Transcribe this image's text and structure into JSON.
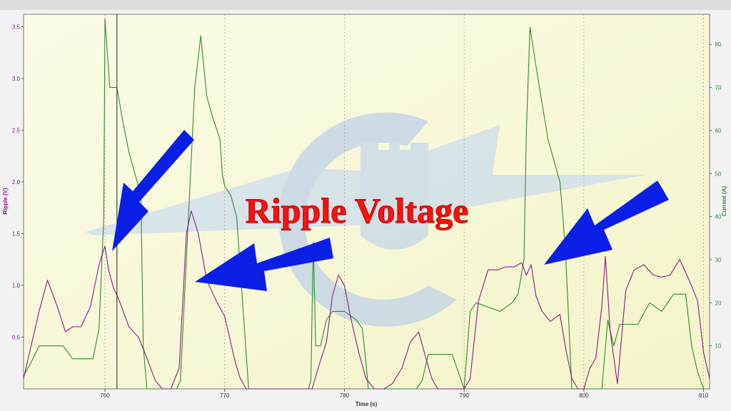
{
  "chart_data": {
    "type": "line",
    "title": "Ripple Voltage",
    "xlabel": "Time (s)",
    "ylabel_left": "Ripple (V)",
    "ylabel_right": "Current (A)",
    "xlim": [
      753.2,
      810.5
    ],
    "ylim_left": [
      0,
      3.62
    ],
    "ylim_right": [
      0,
      87
    ],
    "x_ticks": [
      760,
      770,
      780,
      790,
      800,
      810
    ],
    "y_ticks_left": [
      0.5,
      1.0,
      1.5,
      2.0,
      2.5,
      3.0,
      3.5
    ],
    "y_ticks_right": [
      10,
      20,
      30,
      40,
      50,
      60,
      70,
      80
    ],
    "grid": "vertical dashed",
    "cursor_x": 761.0,
    "series": [
      {
        "name": "Ripple (V)",
        "axis": "left",
        "color": "#8b1a8b",
        "x": [
          753.2,
          753.8,
          754.5,
          755.2,
          756.0,
          756.7,
          757.3,
          758.0,
          758.8,
          759.5,
          760.0,
          760.3,
          760.7,
          761.2,
          762.0,
          762.8,
          763.5,
          764.2,
          764.8,
          765.5,
          766.2,
          766.8,
          767.2,
          767.8,
          768.5,
          769.3,
          770.0,
          770.5,
          770.9,
          771.3,
          771.8,
          772.5,
          773.3,
          774.0,
          774.8,
          775.5,
          776.2,
          776.8,
          777.3,
          777.8,
          778.5,
          779.0,
          779.5,
          780.0,
          780.5,
          781.2,
          781.8,
          782.5,
          783.3,
          784.0,
          784.8,
          785.5,
          786.2,
          786.8,
          787.3,
          787.8,
          788.5,
          789.2,
          790.0,
          790.5,
          791.2,
          792.0,
          792.8,
          793.5,
          794.2,
          794.8,
          795.2,
          795.6,
          796.0,
          796.5,
          797.2,
          798.0,
          798.5,
          799.0,
          799.5,
          800.0,
          800.5,
          801.0,
          801.5,
          801.8,
          802.2,
          802.8,
          803.5,
          804.2,
          805.0,
          805.8,
          806.5,
          807.2,
          808.0,
          808.8,
          809.5,
          810.0,
          810.5
        ],
        "values": [
          0.1,
          0.4,
          0.75,
          1.05,
          0.8,
          0.55,
          0.6,
          0.6,
          0.8,
          1.2,
          1.38,
          1.15,
          0.98,
          0.85,
          0.6,
          0.5,
          0.3,
          0.08,
          0.0,
          0.0,
          0.2,
          1.5,
          1.72,
          1.5,
          1.05,
          0.85,
          0.7,
          0.45,
          0.25,
          0.1,
          0.0,
          0.0,
          0.0,
          0.0,
          0.0,
          0.0,
          0.0,
          0.0,
          0.0,
          0.2,
          0.45,
          0.9,
          1.1,
          1.0,
          0.7,
          0.35,
          0.1,
          0.0,
          0.0,
          0.05,
          0.2,
          0.45,
          0.55,
          0.3,
          0.1,
          0.0,
          0.0,
          0.0,
          0.0,
          0.1,
          0.85,
          1.15,
          1.15,
          1.18,
          1.18,
          1.22,
          1.1,
          1.2,
          0.9,
          0.75,
          0.65,
          0.72,
          0.38,
          0.1,
          0.0,
          0.0,
          0.2,
          0.3,
          0.8,
          1.28,
          0.55,
          0.05,
          0.95,
          1.15,
          1.2,
          1.1,
          1.08,
          1.1,
          1.25,
          1.05,
          0.85,
          0.35,
          0.1
        ]
      },
      {
        "name": "Current (A)",
        "axis": "right",
        "color": "#2e8b2e",
        "x": [
          753.2,
          753.8,
          754.5,
          756.5,
          757.3,
          759.0,
          759.5,
          759.9,
          760.0,
          760.4,
          761.0,
          761.5,
          762.0,
          762.5,
          763.0,
          763.2,
          763.5,
          764.0,
          765.0,
          766.0,
          766.3,
          766.8,
          767.5,
          768.0,
          768.5,
          769.0,
          769.6,
          769.8,
          770.0,
          770.5,
          771.0,
          772.0,
          773.0,
          775.0,
          777.0,
          777.2,
          777.4,
          777.6,
          778.0,
          778.5,
          779.0,
          780.0,
          781.0,
          781.5,
          781.8,
          782.0,
          783.0,
          784.0,
          785.0,
          786.0,
          786.5,
          787.0,
          788.0,
          789.0,
          790.0,
          790.5,
          791.0,
          792.0,
          793.0,
          794.0,
          794.5,
          795.0,
          795.2,
          795.5,
          796.0,
          797.0,
          798.0,
          798.3,
          798.5,
          799.0,
          800.0,
          801.0,
          801.5,
          802.0,
          802.5,
          803.0,
          803.5,
          804.5,
          805.5,
          806.5,
          807.5,
          808.5,
          809.0,
          809.5,
          810.0,
          810.5
        ],
        "values": [
          3,
          6,
          10,
          10,
          7,
          7,
          14,
          40,
          86,
          70,
          70,
          62,
          55,
          50,
          45,
          10,
          0,
          0,
          0,
          0,
          2,
          30,
          70,
          82,
          68,
          63,
          58,
          50,
          47,
          45,
          40,
          0,
          0,
          0,
          0,
          2,
          34,
          10,
          10,
          16,
          18,
          18,
          16,
          14,
          6,
          0,
          0,
          0,
          0,
          0,
          2,
          8,
          8,
          8,
          0,
          18,
          20,
          19,
          18,
          20,
          22,
          30,
          60,
          84,
          75,
          58,
          48,
          38,
          30,
          0,
          0,
          0,
          0,
          16,
          10,
          15,
          15,
          15,
          20,
          18,
          22,
          22,
          10,
          4,
          0,
          0
        ]
      }
    ]
  },
  "watermark": "shield-logo"
}
